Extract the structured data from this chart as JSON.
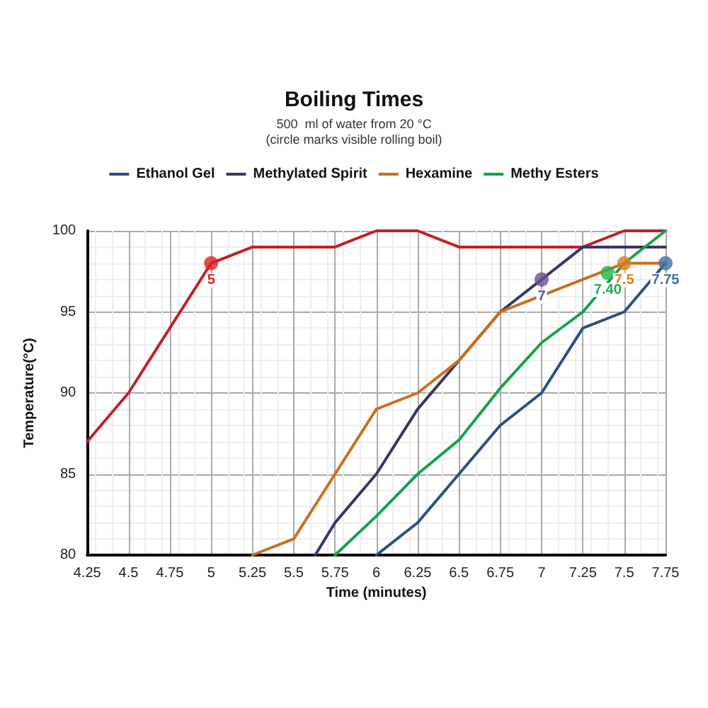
{
  "chart_data": {
    "type": "line",
    "title": "Boiling Times",
    "subtitle": "500  ml of water from 20 °C\n(circle marks visible rolling boil)",
    "xlabel": "Time (minutes)",
    "ylabel": "Temperature(°C)",
    "xlim": [
      4.25,
      7.75
    ],
    "xticks": [
      4.25,
      4.5,
      4.75,
      5,
      5.25,
      5.5,
      5.75,
      6,
      6.25,
      6.5,
      6.75,
      7,
      7.25,
      7.5,
      7.75
    ],
    "ylim": [
      80,
      100
    ],
    "yticks": [
      80,
      85,
      90,
      95,
      100
    ],
    "grid": true,
    "legend": "top",
    "marker": "none",
    "series": [
      {
        "color": "#c0202a",
        "x": [
          4.25,
          4.5,
          4.75,
          5,
          5.25,
          5.5,
          5.75,
          6,
          6.25,
          6.5,
          6.75,
          7,
          7.25,
          7.5,
          7.75
        ],
        "values": [
          87,
          90,
          94,
          98,
          99,
          99,
          99,
          100,
          100,
          99,
          99,
          99,
          99,
          100,
          100
        ]
      },
      {
        "name": "Ethanol Gel",
        "color": "#2f4f7f",
        "x": [
          6,
          6.25,
          6.5,
          6.75,
          7,
          7.25,
          7.5,
          7.75
        ],
        "values": [
          80,
          82,
          85,
          88,
          90,
          94,
          95,
          98
        ]
      },
      {
        "name": "Methylated Spirit",
        "color": "#3a3560",
        "x": [
          5.63,
          5.75,
          6,
          6.25,
          6.5,
          6.75,
          7,
          7.25,
          7.5,
          7.75
        ],
        "values": [
          80,
          82,
          85,
          89,
          92,
          95,
          97,
          99,
          99,
          99
        ]
      },
      {
        "name": "Hexamine",
        "color": "#c87020",
        "x": [
          5.25,
          5.5,
          5.75,
          6,
          6.25,
          6.5,
          6.75,
          7,
          7.25,
          7.5,
          7.75
        ],
        "values": [
          80,
          81,
          85,
          89,
          90,
          92,
          95,
          96,
          97,
          98,
          98
        ]
      },
      {
        "name": "Methy Esters",
        "color": "#18a050",
        "x": [
          5.75,
          6,
          6.25,
          6.5,
          6.75,
          7,
          7.25,
          7.5,
          7.75
        ],
        "values": [
          80,
          82.4,
          85,
          87.1,
          90.3,
          93.1,
          95,
          98,
          100
        ]
      },
      {
        "type": "scatter",
        "marker": "circle",
        "x": [
          5,
          7,
          7.5,
          7.4,
          7.75
        ],
        "values": [
          98,
          97,
          98,
          97.4,
          98
        ],
        "colors": [
          "#e02020",
          "#6a4c93",
          "#e07b20",
          "#20b050",
          "#3f6f9f"
        ]
      }
    ],
    "annotations": [
      {
        "text": "5",
        "x": 5,
        "y": 98
      },
      {
        "text": "7",
        "x": 7,
        "y": 97
      },
      {
        "text": "7.5",
        "x": 7.5,
        "y": 98
      },
      {
        "text": "7.40",
        "x": 7.4,
        "y": 97.4
      },
      {
        "text": "7.75",
        "x": 7.75,
        "y": 98
      }
    ]
  }
}
